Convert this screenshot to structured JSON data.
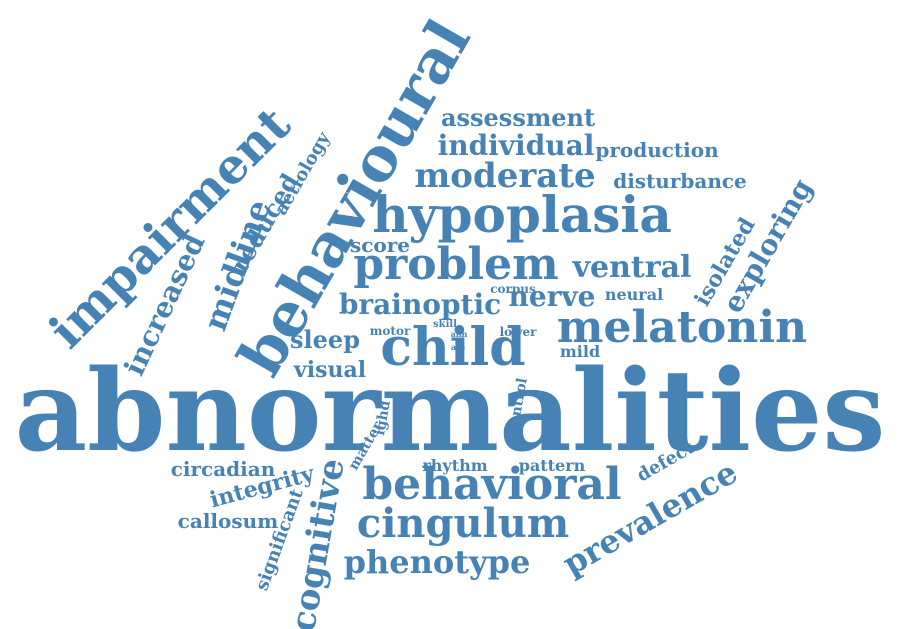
{
  "color": "#4682b4",
  "words": [
    {
      "id": "abnormalities",
      "text": "abnormalities",
      "angle": 0
    },
    {
      "id": "behavioural",
      "text": "behavioural",
      "angle": -60
    },
    {
      "id": "impairment",
      "text": "impairment",
      "angle": -45
    },
    {
      "id": "hypoplasia",
      "text": "hypoplasia",
      "angle": 0
    },
    {
      "id": "problem",
      "text": "problem",
      "angle": 0
    },
    {
      "id": "melatonin",
      "text": "melatonin",
      "angle": 0
    },
    {
      "id": "child",
      "text": "child",
      "angle": 0
    },
    {
      "id": "behavioral",
      "text": "behavioral",
      "angle": 0
    },
    {
      "id": "cingulum",
      "text": "cingulum",
      "angle": 0
    },
    {
      "id": "phenotype",
      "text": "phenotype",
      "angle": 0
    },
    {
      "id": "prevalence",
      "text": "prevalence",
      "angle": -30
    },
    {
      "id": "cognitive",
      "text": "cognitive",
      "angle": -80
    },
    {
      "id": "moderate",
      "text": "moderate",
      "angle": 0
    },
    {
      "id": "individual",
      "text": "individual",
      "angle": 0
    },
    {
      "id": "assessment",
      "text": "assessment",
      "angle": 0
    },
    {
      "id": "production",
      "text": "production",
      "angle": 0
    },
    {
      "id": "disturbance",
      "text": "disturbance",
      "angle": 0
    },
    {
      "id": "ventral",
      "text": "ventral",
      "angle": 0
    },
    {
      "id": "brainoptic",
      "text": "brainoptic",
      "angle": 0
    },
    {
      "id": "nerve",
      "text": "nerve",
      "angle": 0
    },
    {
      "id": "midline",
      "text": "midline",
      "angle": -70
    },
    {
      "id": "increased",
      "text": "increased",
      "angle": -65
    },
    {
      "id": "reduced",
      "text": "reduced",
      "angle": -60
    },
    {
      "id": "aetiology",
      "text": "aetiology",
      "angle": -60
    },
    {
      "id": "exploring",
      "text": "exploring",
      "angle": -60
    },
    {
      "id": "isolated",
      "text": "isolated",
      "angle": -60
    },
    {
      "id": "score",
      "text": "score",
      "angle": 0
    },
    {
      "id": "sleep",
      "text": "sleep",
      "angle": 0
    },
    {
      "id": "visual",
      "text": "visual",
      "angle": 0
    },
    {
      "id": "neural",
      "text": "neural",
      "angle": 0
    },
    {
      "id": "corpus",
      "text": "corpus",
      "angle": 0
    },
    {
      "id": "mild",
      "text": "mild",
      "angle": 0
    },
    {
      "id": "motor",
      "text": "motor",
      "angle": 0
    },
    {
      "id": "skill",
      "text": "skill",
      "angle": 0
    },
    {
      "id": "aim",
      "text": "aim",
      "angle": 0
    },
    {
      "id": "lower",
      "text": "lower",
      "angle": 0
    },
    {
      "id": "ass",
      "text": "ass",
      "angle": 0
    },
    {
      "id": "circadian",
      "text": "circadian",
      "angle": 0
    },
    {
      "id": "integrity",
      "text": "integrity",
      "angle": -15
    },
    {
      "id": "callosum",
      "text": "callosum",
      "angle": 0
    },
    {
      "id": "significant",
      "text": "significant",
      "angle": -70
    },
    {
      "id": "rhythm",
      "text": "rhythm",
      "angle": 0
    },
    {
      "id": "pattern",
      "text": "pattern",
      "angle": 0
    },
    {
      "id": "defect",
      "text": "defect",
      "angle": -30
    },
    {
      "id": "matter",
      "text": "matter",
      "angle": -60
    },
    {
      "id": "ighd",
      "text": "ighd",
      "angle": -80
    },
    {
      "id": "control",
      "text": "control",
      "angle": -80
    }
  ]
}
